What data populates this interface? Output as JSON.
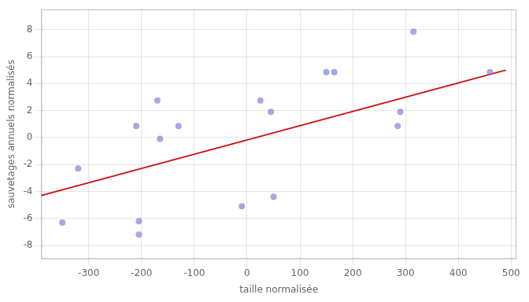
{
  "chart_data": {
    "type": "scatter",
    "xlabel": "taille normalisée",
    "ylabel": "sauvetages annuels normalisés",
    "series": [
      {
        "type": "scatter",
        "color": "#7878d4",
        "x": [
          -350,
          -320,
          -210,
          -205,
          -170,
          -165,
          -205,
          -130,
          -10,
          25,
          45,
          50,
          150,
          165,
          285,
          290,
          315,
          460
        ],
        "values": [
          -6.3,
          -2.3,
          0.85,
          -7.2,
          2.75,
          -0.1,
          -6.2,
          0.85,
          -5.1,
          2.75,
          1.9,
          -4.4,
          4.85,
          4.85,
          0.85,
          1.9,
          7.85,
          4.85
        ]
      },
      {
        "type": "line",
        "color": "#cc1111",
        "x": [
          -390,
          490
        ],
        "values": [
          -4.3,
          5.0
        ]
      }
    ],
    "xlim": [
      -390,
      510
    ],
    "ylim": [
      -9,
      9.5
    ],
    "xticks": [
      -300,
      -200,
      -100,
      0,
      100,
      200,
      300,
      400,
      500
    ],
    "yticks": [
      -8,
      -6,
      -4,
      -2,
      0,
      2,
      4,
      6,
      8
    ],
    "grid": true
  }
}
